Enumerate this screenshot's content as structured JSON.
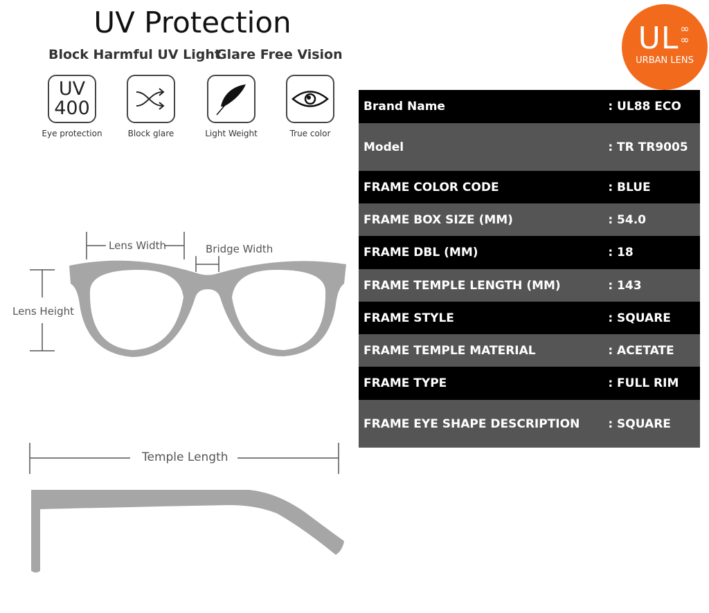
{
  "header": {
    "title": "UV Protection",
    "subtitle_left": "Block Harmful UV Light",
    "subtitle_right": "Glare Free Vision"
  },
  "features": [
    {
      "icon": "uv400-icon",
      "icon_text_top": "UV",
      "icon_text_bottom": "400",
      "label": "Eye protection"
    },
    {
      "icon": "shuffle-arrows-icon",
      "label": "Block glare"
    },
    {
      "icon": "feather-icon",
      "label": "Light Weight"
    },
    {
      "icon": "eye-icon",
      "label": "True color"
    }
  ],
  "diagram": {
    "lens_width": "Lens Width",
    "bridge_width": "Bridge Width",
    "lens_height": "Lens Height",
    "temple_length": "Temple Length",
    "frame_color": "#a6a6a6"
  },
  "logo": {
    "letters": "UL",
    "symbol": "∞∞",
    "name": "URBAN LENS",
    "color": "#f26b1d"
  },
  "specs": [
    {
      "label": "Brand Name",
      "value": ": UL88 ECO"
    },
    {
      "label": "Model",
      "value": ": TR TR9005"
    },
    {
      "label": "FRAME COLOR CODE",
      "value": ": BLUE"
    },
    {
      "label": "FRAME BOX SIZE (MM)",
      "value": ": 54.0"
    },
    {
      "label": "FRAME DBL (MM)",
      "value": ": 18"
    },
    {
      "label": "FRAME TEMPLE LENGTH (MM)",
      "value": ": 143"
    },
    {
      "label": "FRAME STYLE",
      "value": ": SQUARE"
    },
    {
      "label": "FRAME TEMPLE MATERIAL",
      "value": ": ACETATE"
    },
    {
      "label": "FRAME TYPE",
      "value": ": FULL RIM"
    },
    {
      "label": "FRAME EYE SHAPE DESCRIPTION",
      "value": ": SQUARE"
    }
  ]
}
